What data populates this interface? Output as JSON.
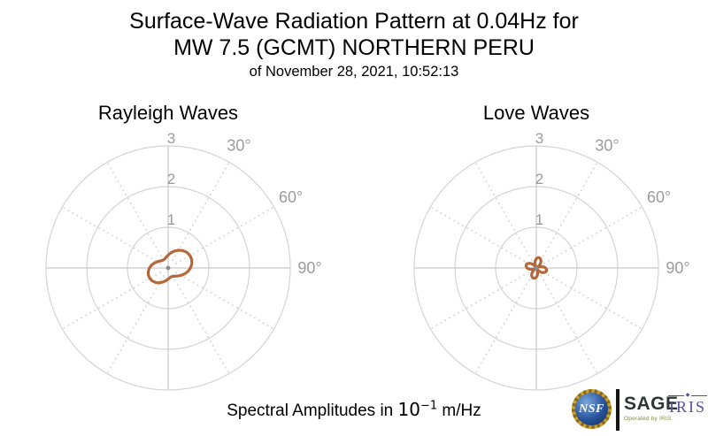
{
  "figure": {
    "title_line1": "Surface-Wave Radiation Pattern at 0.04Hz for",
    "title_line2": "MW 7.5 (GCMT) NORTHERN PERU",
    "date_line": "of November 28, 2021, 10:52:13"
  },
  "footer": {
    "amplitude_prefix": "Spectral Amplitudes in ",
    "amplitude_base": "10",
    "amplitude_exponent": "−1",
    "amplitude_suffix": " m/Hz"
  },
  "branding": {
    "nsf_text": "NSF",
    "sage_text": "SAGE",
    "sage_subtext": "Operated by IRIS",
    "iris_text": "IRIS",
    "iris_ornament": "◆"
  },
  "colors": {
    "pattern_stroke": "#b2683a",
    "grid_line": "#d4d4d4",
    "axis_cross": "#c8c8c8",
    "tick_label": "#9b9b9b",
    "title_text": "#000000",
    "center_dot": "#8c8c8c",
    "nsf_gold": "#c9a227",
    "nsf_blue": "#27539b",
    "logo_bar": "#151515",
    "sage_text_color": "#2d3733",
    "sage_subtext_color": "#7d8c4b",
    "iris_purple": "#5c4e9e"
  },
  "chart_data": [
    {
      "type": "line",
      "projection": "polar",
      "title": "Rayleigh Waves",
      "r_ticks": [
        1,
        2,
        3
      ],
      "r_max": 3,
      "angle_tick_labels": [
        "30°",
        "60°",
        "90°"
      ],
      "angle_tick_positions_deg": [
        30,
        60,
        90
      ],
      "spoke_step_deg": 30,
      "azimuth_zero": "north",
      "azimuth_direction": "clockwise",
      "units": "10⁻¹ m/Hz",
      "grid": true,
      "legend": false,
      "series": [
        {
          "name": "rayleigh_radiation_amplitude",
          "points": [
            [
              0,
              0.317
            ],
            [
              10,
              0.377
            ],
            [
              20,
              0.442
            ],
            [
              30,
              0.505
            ],
            [
              40,
              0.559
            ],
            [
              50,
              0.599
            ],
            [
              60,
              0.618
            ],
            [
              70,
              0.616
            ],
            [
              80,
              0.592
            ],
            [
              90,
              0.55
            ],
            [
              100,
              0.493
            ],
            [
              110,
              0.429
            ],
            [
              120,
              0.364
            ],
            [
              130,
              0.307
            ],
            [
              140,
              0.262
            ],
            [
              150,
              0.235
            ],
            [
              160,
              0.228
            ],
            [
              170,
              0.242
            ],
            [
              180,
              0.273
            ],
            [
              190,
              0.318
            ],
            [
              200,
              0.37
            ],
            [
              210,
              0.422
            ],
            [
              220,
              0.468
            ],
            [
              230,
              0.502
            ],
            [
              240,
              0.518
            ],
            [
              250,
              0.517
            ],
            [
              260,
              0.496
            ],
            [
              270,
              0.46
            ],
            [
              280,
              0.412
            ],
            [
              290,
              0.359
            ],
            [
              300,
              0.308
            ],
            [
              310,
              0.266
            ],
            [
              320,
              0.238
            ],
            [
              330,
              0.228
            ],
            [
              340,
              0.239
            ],
            [
              350,
              0.27
            ]
          ]
        }
      ]
    },
    {
      "type": "line",
      "projection": "polar",
      "title": "Love Waves",
      "r_ticks": [
        1,
        2,
        3
      ],
      "r_max": 3,
      "angle_tick_labels": [
        "30°",
        "60°",
        "90°"
      ],
      "angle_tick_positions_deg": [
        30,
        60,
        90
      ],
      "spoke_step_deg": 30,
      "azimuth_zero": "north",
      "azimuth_direction": "clockwise",
      "units": "10⁻¹ m/Hz",
      "grid": true,
      "legend": false,
      "series": [
        {
          "name": "love_radiation_amplitude",
          "points": [
            [
              0,
              0.225
            ],
            [
              5,
              0.244
            ],
            [
              10,
              0.256
            ],
            [
              15,
              0.26
            ],
            [
              20,
              0.256
            ],
            [
              25,
              0.244
            ],
            [
              30,
              0.225
            ],
            [
              35,
              0.199
            ],
            [
              40,
              0.167
            ],
            [
              45,
              0.13
            ],
            [
              50,
              0.089
            ],
            [
              55,
              0.045
            ],
            [
              60,
              0.0
            ],
            [
              65,
              0.045
            ],
            [
              70,
              0.089
            ],
            [
              75,
              0.13
            ],
            [
              80,
              0.167
            ],
            [
              85,
              0.199
            ],
            [
              90,
              0.225
            ],
            [
              95,
              0.244
            ],
            [
              100,
              0.256
            ],
            [
              105,
              0.26
            ],
            [
              110,
              0.256
            ],
            [
              115,
              0.244
            ],
            [
              120,
              0.225
            ],
            [
              125,
              0.199
            ],
            [
              130,
              0.167
            ],
            [
              135,
              0.13
            ],
            [
              140,
              0.089
            ],
            [
              145,
              0.045
            ],
            [
              150,
              0.0
            ],
            [
              155,
              0.045
            ],
            [
              160,
              0.089
            ],
            [
              165,
              0.13
            ],
            [
              170,
              0.167
            ],
            [
              175,
              0.199
            ],
            [
              180,
              0.225
            ],
            [
              185,
              0.244
            ],
            [
              190,
              0.256
            ],
            [
              195,
              0.26
            ],
            [
              200,
              0.256
            ],
            [
              205,
              0.244
            ],
            [
              210,
              0.225
            ],
            [
              215,
              0.199
            ],
            [
              220,
              0.167
            ],
            [
              225,
              0.13
            ],
            [
              230,
              0.089
            ],
            [
              235,
              0.045
            ],
            [
              240,
              0.0
            ],
            [
              245,
              0.045
            ],
            [
              250,
              0.089
            ],
            [
              255,
              0.13
            ],
            [
              260,
              0.167
            ],
            [
              265,
              0.199
            ],
            [
              270,
              0.225
            ],
            [
              275,
              0.244
            ],
            [
              280,
              0.256
            ],
            [
              285,
              0.26
            ],
            [
              290,
              0.256
            ],
            [
              295,
              0.244
            ],
            [
              300,
              0.225
            ],
            [
              305,
              0.199
            ],
            [
              310,
              0.167
            ],
            [
              315,
              0.13
            ],
            [
              320,
              0.089
            ],
            [
              325,
              0.045
            ],
            [
              330,
              0.0
            ],
            [
              335,
              0.045
            ],
            [
              340,
              0.089
            ],
            [
              345,
              0.13
            ],
            [
              350,
              0.167
            ],
            [
              355,
              0.199
            ]
          ]
        }
      ]
    }
  ]
}
